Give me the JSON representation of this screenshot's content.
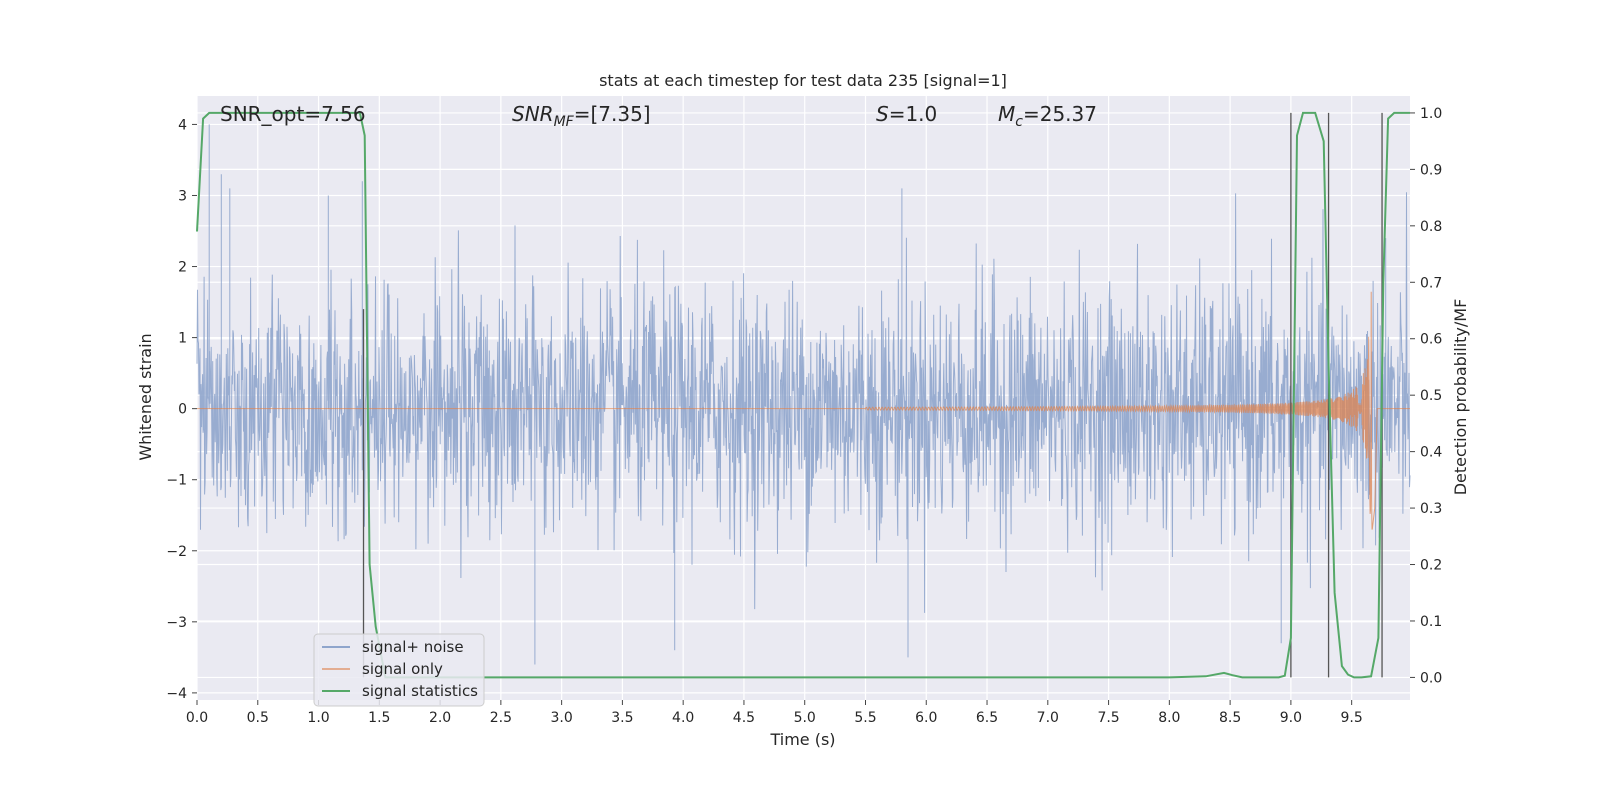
{
  "chart_data": {
    "type": "line",
    "title": "stats at each timestep for test data 235 [signal=1]",
    "xlabel": "Time (s)",
    "ylabel_left": "Whitened strain",
    "ylabel_right": "Detection probability/MF",
    "xlim": [
      0.0,
      9.98
    ],
    "ylim_left": [
      -4.1,
      4.4
    ],
    "ylim_right": [
      -0.04,
      1.03
    ],
    "xticks": [
      "0.0",
      "0.5",
      "1.0",
      "1.5",
      "2.0",
      "2.5",
      "3.0",
      "3.5",
      "4.0",
      "4.5",
      "5.0",
      "5.5",
      "6.0",
      "6.5",
      "7.0",
      "7.5",
      "8.0",
      "8.5",
      "9.0",
      "9.5"
    ],
    "yticks_left": [
      "−4",
      "−3",
      "−2",
      "−1",
      "0",
      "1",
      "2",
      "3",
      "4"
    ],
    "yticks_right": [
      "0.0",
      "0.1",
      "0.2",
      "0.3",
      "0.4",
      "0.5",
      "0.6",
      "0.7",
      "0.8",
      "0.9",
      "1.0"
    ],
    "grid": true,
    "legend_position": "lower-left",
    "annotations": [
      {
        "label": "SNR_opt=7.56",
        "x": 0.19
      },
      {
        "label": "SNR",
        "sub": "MF",
        "value": "=[7.35]",
        "x": 2.6
      },
      {
        "label": "S",
        "sub": "",
        "value": "=1.0",
        "x": 5.6
      },
      {
        "label": "M",
        "sub": "c",
        "value": "=25.37",
        "x": 6.6
      }
    ],
    "vertical_lines": [
      1.37,
      9.0,
      9.31,
      9.75
    ],
    "series": [
      {
        "name": "signal+ noise",
        "color": "#8fa5cc",
        "description_axis": "left",
        "noise_envelope": {
          "typical_abs": 1.3,
          "peak_abs": 3.6
        },
        "peaks": [
          [
            0.1,
            4.0
          ],
          [
            0.2,
            3.3
          ],
          [
            0.27,
            3.1
          ],
          [
            1.08,
            3.0
          ],
          [
            1.36,
            3.2
          ],
          [
            2.78,
            -3.6
          ],
          [
            3.93,
            -3.4
          ],
          [
            5.8,
            3.1
          ],
          [
            5.85,
            -3.5
          ],
          [
            8.92,
            -3.3
          ],
          [
            9.31,
            -2.7
          ],
          [
            9.78,
            2.4
          ]
        ]
      },
      {
        "name": "signal only",
        "color": "#dd8452",
        "description_axis": "left",
        "chirp": {
          "start": 5.5,
          "merger": 9.67,
          "amplitude_at_merger": 1.7,
          "amplitude_at_start": 0.02
        }
      },
      {
        "name": "signal statistics",
        "color": "#55a868",
        "description_axis": "right",
        "x": [
          0.0,
          0.05,
          0.1,
          0.5,
          1.0,
          1.34,
          1.38,
          1.42,
          1.47,
          1.55,
          2.0,
          3.0,
          4.0,
          5.0,
          6.0,
          7.0,
          8.0,
          8.3,
          8.45,
          8.52,
          8.6,
          8.9,
          8.95,
          9.0,
          9.05,
          9.1,
          9.2,
          9.27,
          9.31,
          9.36,
          9.42,
          9.47,
          9.52,
          9.58,
          9.66,
          9.72,
          9.76,
          9.8,
          9.85,
          9.9,
          9.98
        ],
        "y": [
          0.79,
          0.99,
          1.0,
          1.0,
          1.0,
          1.0,
          0.96,
          0.2,
          0.09,
          0.0,
          0.0,
          0.0,
          0.0,
          0.0,
          0.0,
          0.0,
          0.0,
          0.002,
          0.008,
          0.004,
          0.0,
          0.0,
          0.003,
          0.07,
          0.96,
          1.0,
          1.0,
          0.95,
          0.55,
          0.15,
          0.02,
          0.005,
          0.0,
          0.0,
          0.002,
          0.07,
          0.7,
          0.99,
          1.0,
          1.0,
          1.0
        ]
      }
    ]
  }
}
